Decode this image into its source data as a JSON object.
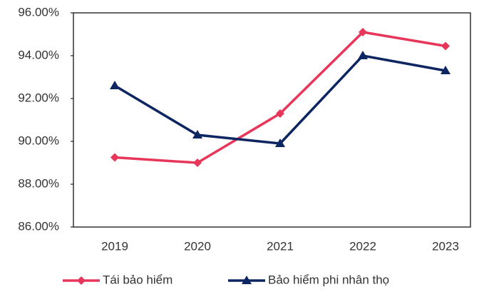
{
  "chart_data": {
    "type": "line",
    "categories": [
      "2019",
      "2020",
      "2021",
      "2022",
      "2023"
    ],
    "series": [
      {
        "name": "Tái bảo hiểm",
        "color": "#e8365a",
        "marker": "diamond",
        "values": [
          89.25,
          89.0,
          91.3,
          95.1,
          94.45
        ]
      },
      {
        "name": "Bảo hiểm phi nhân thọ",
        "color": "#0d2560",
        "marker": "triangle",
        "values": [
          92.6,
          90.3,
          89.9,
          94.0,
          93.3
        ]
      }
    ],
    "ylim": [
      86,
      96
    ],
    "yticks": [
      {
        "value": 86,
        "label": "86.00%"
      },
      {
        "value": 88,
        "label": "88.00%"
      },
      {
        "value": 90,
        "label": "90.00%"
      },
      {
        "value": 92,
        "label": "92.00%"
      },
      {
        "value": 94,
        "label": "94.00%"
      },
      {
        "value": 96,
        "label": "96.00%"
      }
    ],
    "legend": "bottom"
  }
}
